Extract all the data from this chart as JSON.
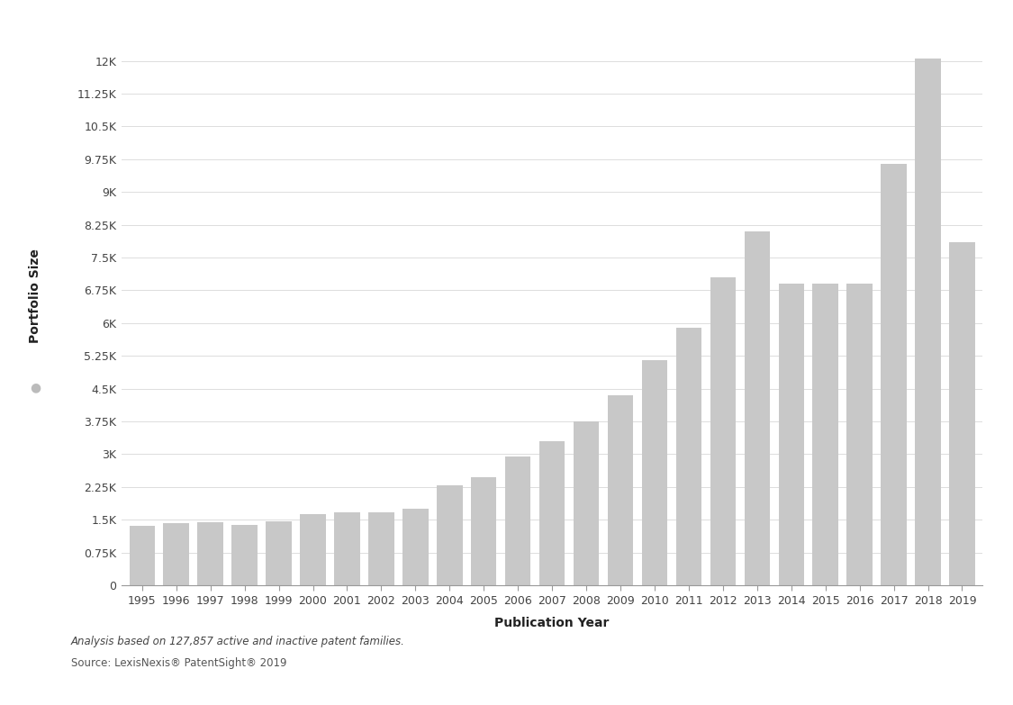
{
  "years": [
    1995,
    1996,
    1997,
    1998,
    1999,
    2000,
    2001,
    2002,
    2003,
    2004,
    2005,
    2006,
    2007,
    2008,
    2009,
    2010,
    2011,
    2012,
    2013,
    2014,
    2015,
    2016,
    2017,
    2018,
    2019
  ],
  "values": [
    1350,
    1420,
    1440,
    1370,
    1470,
    1620,
    1660,
    1660,
    1760,
    2280,
    2480,
    2950,
    3300,
    3750,
    4350,
    5150,
    5900,
    7050,
    8100,
    6900,
    6900,
    6900,
    9650,
    12050,
    7850
  ],
  "bar_color": "#C8C8C8",
  "bar_edge_color": "none",
  "ylabel": "Portfolio Size",
  "xlabel": "Publication Year",
  "ylim": [
    0,
    12750
  ],
  "yticks": [
    0,
    750,
    1500,
    2250,
    3000,
    3750,
    4500,
    5250,
    6000,
    6750,
    7500,
    8250,
    9000,
    9750,
    10500,
    11250,
    12000
  ],
  "ytick_labels": [
    "0",
    "0.75K",
    "1.5K",
    "2.25K",
    "3K",
    "3.75K",
    "4.5K",
    "5.25K",
    "6K",
    "6.75K",
    "7.5K",
    "8.25K",
    "9K",
    "9.75K",
    "10.5K",
    "11.25K",
    "12K"
  ],
  "legend_label": "Portfolio Size",
  "legend_dot_color": "#BBBBBB",
  "footnote1": "Analysis based on 127,857 active and inactive patent families.",
  "footnote2": "Source: LexisNexis® PatentSight® 2019",
  "bg_color": "#FFFFFF",
  "spine_color": "#999999",
  "grid_color": "#DDDDDD",
  "tick_color": "#444444",
  "label_color": "#222222",
  "axis_label_fontsize": 10,
  "tick_fontsize": 9,
  "footnote_fontsize": 8.5
}
